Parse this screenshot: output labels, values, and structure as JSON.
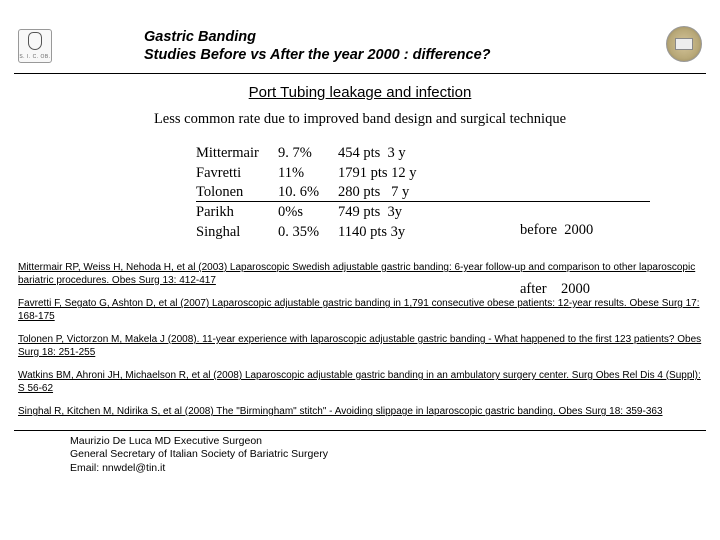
{
  "header": {
    "title_l1": "Gastric Banding",
    "title_l2": "Studies Before vs After the year 2000 : difference?",
    "left_logo_text": "S. I. C. OB."
  },
  "section_title": "Port Tubing leakage and infection",
  "lead": "Less common rate due to improved band design and surgical technique",
  "rows": [
    {
      "author": "Mittermair",
      "pct": "9. 7%",
      "pts": "454 pts  3 y"
    },
    {
      "author": "Favretti",
      "pct": "11%",
      "pts": "1791 pts 12 y"
    },
    {
      "author": "Tolonen",
      "pct": "10. 6%",
      "pts": "280 pts   7 y"
    },
    {
      "author": "Parikh",
      "pct": "0%s",
      "pts": "749 pts  3y"
    },
    {
      "author": "Singhal",
      "pct": "0. 35%",
      "pts": "1140 pts 3y"
    }
  ],
  "period": {
    "before": "before  2000",
    "after": "after    2000"
  },
  "refs": [
    "Mittermair RP, Weiss H, Nehoda H, et al (2003) Laparoscopic Swedish adjustable gastric banding: 6-year follow-up and comparison to other laparoscopic bariatric procedures.  Obes Surg 13: 412-417",
    "Favretti F, Segato G, Ashton D, et al (2007) Laparoscopic adjustable gastric banding in 1,791 consecutive obese patients: 12-year results.  Obese Surg 17: 168-175",
    "Tolonen P, Victorzon M, Makela J (2008). 11-year experience with laparoscopic adjustable gastric banding - What happened to the first 123 patients? Obes Surg 18: 251-255",
    "Watkins BM, Ahroni JH, Michaelson R, et al (2008) Laparoscopic adjustable gastric banding in an ambulatory surgery center.  Surg Obes Rel Dis 4 (Suppl): S 56-62",
    "Singhal R, Kitchen M, Ndirika S, et al (2008) The \"Birmingham\" stitch\" - Avoiding slippage in laparoscopic gastric banding.  Obes Surg 18: 359-363"
  ],
  "footer": {
    "l1": "Maurizio De Luca MD Executive Surgeon",
    "l2": "General Secretary of Italian Society of Bariatric Surgery",
    "l3": "Email: nnwdel@tin.it"
  }
}
